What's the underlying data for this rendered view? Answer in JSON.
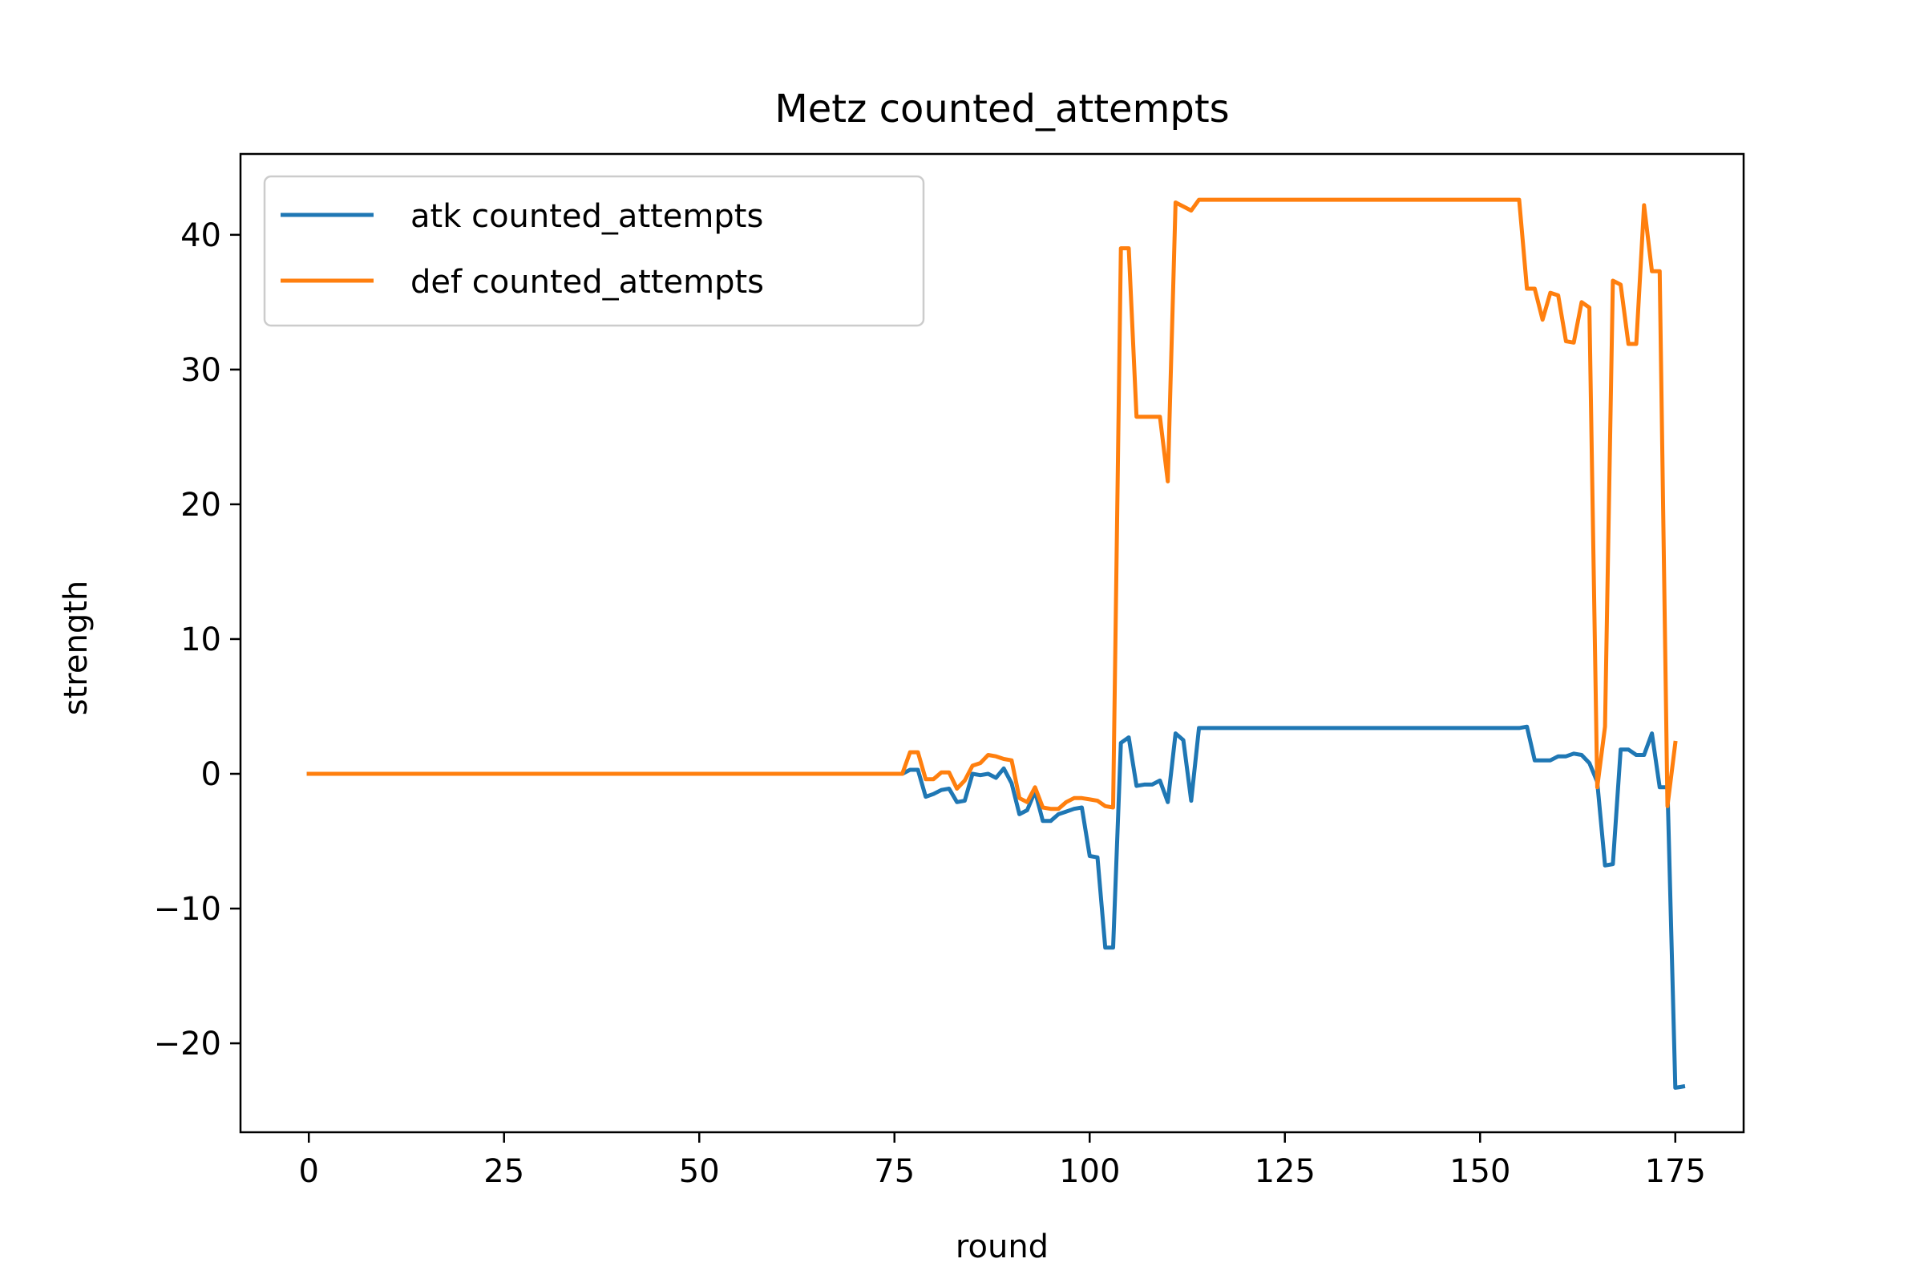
{
  "chart_data": {
    "type": "line",
    "title": "Metz counted_attempts",
    "xlabel": "round",
    "ylabel": "strength",
    "xlim": [
      -8.75,
      183.75
    ],
    "ylim": [
      -26.6,
      46.0
    ],
    "x_ticks": [
      0,
      25,
      50,
      75,
      100,
      125,
      150,
      175
    ],
    "x_tick_labels": [
      "0",
      "25",
      "50",
      "75",
      "100",
      "125",
      "150",
      "175"
    ],
    "y_ticks": [
      -20,
      -10,
      0,
      10,
      20,
      30,
      40
    ],
    "y_tick_labels": [
      "−20",
      "−10",
      "0",
      "10",
      "20",
      "30",
      "40"
    ],
    "grid": false,
    "legend_position": "upper left",
    "series": [
      {
        "name": "atk counted_attempts",
        "color": "#1f77b4",
        "points": [
          [
            0,
            0
          ],
          [
            76,
            0
          ],
          [
            77,
            0.3
          ],
          [
            78,
            0.3
          ],
          [
            79,
            -1.7
          ],
          [
            80,
            -1.5
          ],
          [
            81,
            -1.2
          ],
          [
            82,
            -1.1
          ],
          [
            83,
            -2.1
          ],
          [
            84,
            -2.0
          ],
          [
            85,
            0.0
          ],
          [
            86,
            -0.1
          ],
          [
            87,
            0.0
          ],
          [
            88,
            -0.3
          ],
          [
            89,
            0.4
          ],
          [
            90,
            -0.7
          ],
          [
            91,
            -3.0
          ],
          [
            92,
            -2.7
          ],
          [
            93,
            -1.3
          ],
          [
            94,
            -3.5
          ],
          [
            95,
            -3.5
          ],
          [
            96,
            -3.0
          ],
          [
            97,
            -2.8
          ],
          [
            98,
            -2.6
          ],
          [
            99,
            -2.5
          ],
          [
            100,
            -6.1
          ],
          [
            101,
            -6.2
          ],
          [
            102,
            -12.9
          ],
          [
            103,
            -12.9
          ],
          [
            104,
            2.3
          ],
          [
            105,
            2.7
          ],
          [
            106,
            -0.9
          ],
          [
            107,
            -0.8
          ],
          [
            108,
            -0.8
          ],
          [
            109,
            -0.5
          ],
          [
            110,
            -2.1
          ],
          [
            111,
            3.0
          ],
          [
            112,
            2.5
          ],
          [
            113,
            -2.0
          ],
          [
            114,
            3.4
          ],
          [
            155,
            3.4
          ],
          [
            156,
            3.5
          ],
          [
            157,
            1.0
          ],
          [
            158,
            1.0
          ],
          [
            159,
            1.0
          ],
          [
            160,
            1.3
          ],
          [
            161,
            1.3
          ],
          [
            162,
            1.5
          ],
          [
            163,
            1.4
          ],
          [
            164,
            0.8
          ],
          [
            165,
            -0.6
          ],
          [
            166,
            -6.8
          ],
          [
            167,
            -6.7
          ],
          [
            168,
            1.8
          ],
          [
            169,
            1.8
          ],
          [
            170,
            1.4
          ],
          [
            171,
            1.4
          ],
          [
            172,
            3.0
          ],
          [
            173,
            -1.0
          ],
          [
            174,
            -1.0
          ],
          [
            175,
            -23.3
          ],
          [
            176,
            -23.2
          ]
        ]
      },
      {
        "name": "def counted_attempts",
        "color": "#ff7f0e",
        "points": [
          [
            0,
            0
          ],
          [
            76,
            0
          ],
          [
            77,
            1.6
          ],
          [
            78,
            1.6
          ],
          [
            79,
            -0.4
          ],
          [
            80,
            -0.4
          ],
          [
            81,
            0.1
          ],
          [
            82,
            0.1
          ],
          [
            83,
            -1.1
          ],
          [
            84,
            -0.5
          ],
          [
            85,
            0.6
          ],
          [
            86,
            0.8
          ],
          [
            87,
            1.4
          ],
          [
            88,
            1.3
          ],
          [
            89,
            1.1
          ],
          [
            90,
            1.0
          ],
          [
            91,
            -1.8
          ],
          [
            92,
            -2.1
          ],
          [
            93,
            -1.0
          ],
          [
            94,
            -2.5
          ],
          [
            95,
            -2.6
          ],
          [
            96,
            -2.6
          ],
          [
            97,
            -2.1
          ],
          [
            98,
            -1.8
          ],
          [
            99,
            -1.8
          ],
          [
            100,
            -1.9
          ],
          [
            101,
            -2.0
          ],
          [
            102,
            -2.4
          ],
          [
            103,
            -2.5
          ],
          [
            104,
            39.0
          ],
          [
            105,
            39.0
          ],
          [
            106,
            26.5
          ],
          [
            107,
            26.5
          ],
          [
            108,
            26.5
          ],
          [
            109,
            26.5
          ],
          [
            110,
            21.7
          ],
          [
            111,
            42.4
          ],
          [
            112,
            42.1
          ],
          [
            113,
            41.8
          ],
          [
            114,
            42.6
          ],
          [
            155,
            42.6
          ],
          [
            156,
            36.0
          ],
          [
            157,
            36.0
          ],
          [
            158,
            33.7
          ],
          [
            159,
            35.7
          ],
          [
            160,
            35.5
          ],
          [
            161,
            32.1
          ],
          [
            162,
            32.0
          ],
          [
            163,
            35.0
          ],
          [
            164,
            34.6
          ],
          [
            165,
            -1.0
          ],
          [
            166,
            3.5
          ],
          [
            167,
            36.6
          ],
          [
            168,
            36.3
          ],
          [
            169,
            31.9
          ],
          [
            170,
            31.9
          ],
          [
            171,
            42.2
          ],
          [
            172,
            37.3
          ],
          [
            173,
            37.3
          ],
          [
            174,
            -2.4
          ],
          [
            175,
            2.3
          ]
        ]
      }
    ]
  }
}
